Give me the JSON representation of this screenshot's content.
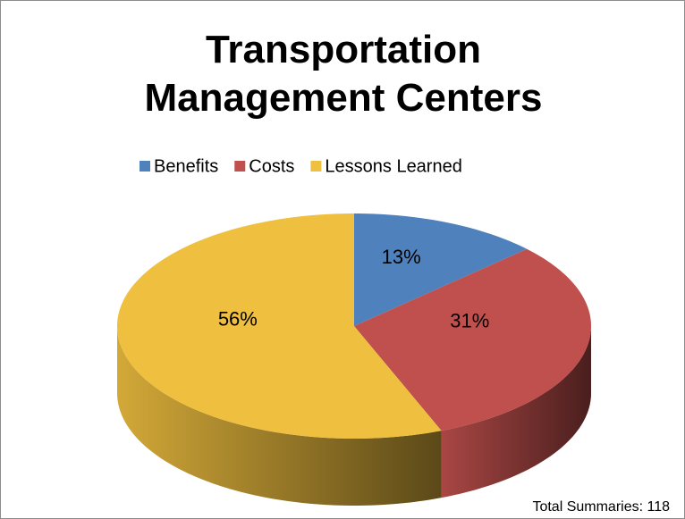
{
  "chart_data": {
    "type": "pie",
    "title": "Transportation Management Centers",
    "categories": [
      "Benefits",
      "Costs",
      "Lessons Learned"
    ],
    "values": [
      13,
      31,
      56
    ],
    "value_labels": [
      "13%",
      "31%",
      "56%"
    ],
    "colors": [
      "#4f81bd",
      "#c0504d",
      "#efbf3f"
    ],
    "legend": "top",
    "annotation": "Total Summaries: 118"
  }
}
